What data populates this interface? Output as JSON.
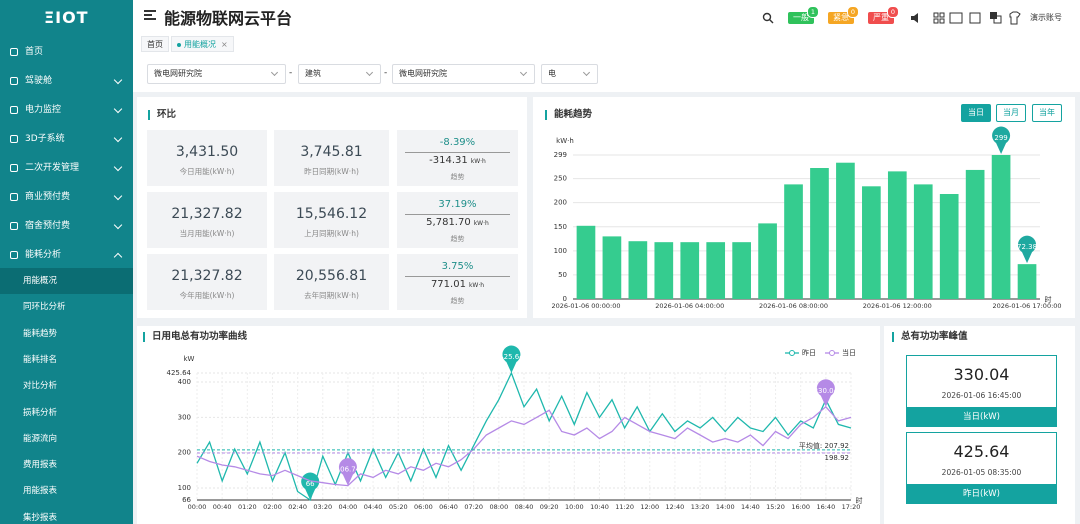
{
  "sidebar": {
    "logo": "ΞIOT",
    "items": [
      {
        "label": "首页",
        "submenu": false
      },
      {
        "label": "驾驶舱",
        "submenu": true
      },
      {
        "label": "电力监控",
        "submenu": true
      },
      {
        "label": "3D子系统",
        "submenu": true
      },
      {
        "label": "二次开发管理",
        "submenu": true
      },
      {
        "label": "商业预付费",
        "submenu": true
      },
      {
        "label": "宿舍预付费",
        "submenu": true
      },
      {
        "label": "能耗分析",
        "submenu": true
      }
    ],
    "subitems": [
      "用能概况",
      "同环比分析",
      "能耗趋势",
      "能耗排名",
      "对比分析",
      "损耗分析",
      "能源流向",
      "费用报表",
      "用能报表",
      "集抄报表"
    ]
  },
  "header": {
    "title": "能源物联网云平台",
    "badges": [
      {
        "label": "一般",
        "count": 1,
        "color": "#2fc25b"
      },
      {
        "label": "紧急",
        "count": 0,
        "color": "#f5a623"
      },
      {
        "label": "严重",
        "count": 0,
        "color": "#f04d4d"
      }
    ],
    "account": "演示账号"
  },
  "tabs": [
    "首页",
    "用能概况"
  ],
  "filters": {
    "selects": [
      "微电网研究院",
      "建筑",
      "微电网研究院",
      "电"
    ],
    "separator": "-"
  },
  "ring": {
    "title": "环比",
    "rows": [
      [
        {
          "value": "3,431.50",
          "label": "今日用能(kW·h)"
        },
        {
          "value": "3,745.81",
          "label": "昨日同期(kW·h)"
        },
        {
          "percent": "-8.39%",
          "diff": "-314.31",
          "unit": "kW·h",
          "label": "趋势"
        }
      ],
      [
        {
          "value": "21,327.82",
          "label": "当月用能(kW·h)"
        },
        {
          "value": "15,546.12",
          "label": "上月同期(kW·h)"
        },
        {
          "percent": "37.19%",
          "diff": "5,781.70",
          "unit": "kW·h",
          "label": "趋势"
        }
      ],
      [
        {
          "value": "21,327.82",
          "label": "今年用能(kW·h)"
        },
        {
          "value": "20,556.81",
          "label": "去年同期(kW·h)"
        },
        {
          "percent": "3.75%",
          "diff": "771.01",
          "unit": "kW·h",
          "label": "趋势"
        }
      ]
    ]
  },
  "chart_data": [
    {
      "type": "bar",
      "title": "能耗趋势",
      "range_buttons": [
        "当日",
        "当月",
        "当年"
      ],
      "ylabel": "kW·h",
      "xlabel": "时",
      "categories": [
        "2026-01-06 00:00:00",
        null,
        null,
        null,
        "2026-01-06 04:00:00",
        null,
        null,
        null,
        "2026-01-06 08:00:00",
        null,
        null,
        null,
        "2026-01-06 12:00:00",
        null,
        null,
        null,
        null,
        "2026-01-06 17:00:00"
      ],
      "values": [
        152,
        130,
        120,
        118,
        118,
        118,
        118,
        157,
        238,
        272,
        283,
        234,
        265,
        238,
        218,
        268,
        299,
        72.38
      ],
      "color": "#35cc8f",
      "pin_color": "#1fa9a0",
      "ylim": [
        0,
        299
      ],
      "yticks": [
        0,
        50,
        100,
        150,
        200,
        250,
        299
      ],
      "grid": true
    },
    {
      "type": "line",
      "title": "日用电总有功功率曲线",
      "ylabel": "kW",
      "xlabel": "时",
      "categories": [
        "00:00",
        null,
        "00:40",
        null,
        "01:20",
        null,
        "02:00",
        null,
        "02:40",
        null,
        "03:20",
        null,
        "04:00",
        null,
        "04:40",
        null,
        "05:20",
        null,
        "06:00",
        null,
        "06:40",
        null,
        "07:20",
        null,
        "08:00",
        null,
        "08:40",
        null,
        "09:20",
        null,
        "10:00",
        null,
        "10:40",
        null,
        "11:20",
        null,
        "12:00",
        null,
        "12:40",
        null,
        "13:20",
        null,
        "14:00",
        null,
        "14:40",
        null,
        "15:20",
        null,
        "16:00",
        null,
        "16:40",
        null,
        "17:20"
      ],
      "series": [
        {
          "name": "昨日",
          "color": "#1fb8ad",
          "values": [
            170,
            230,
            120,
            210,
            140,
            230,
            120,
            200,
            90,
            66,
            190,
            110,
            200,
            120,
            210,
            130,
            200,
            120,
            210,
            130,
            220,
            150,
            220,
            290,
            350,
            425.64,
            330,
            380,
            290,
            360,
            280,
            370,
            300,
            350,
            270,
            330,
            260,
            310,
            260,
            290,
            270,
            300,
            260,
            300,
            270,
            260,
            300,
            250,
            290,
            270,
            350,
            280,
            270
          ]
        },
        {
          "name": "当日",
          "color": "#b58ae6",
          "values": [
            190,
            175,
            165,
            160,
            150,
            140,
            135,
            150,
            135,
            120,
            115,
            110,
            106.74,
            140,
            130,
            150,
            140,
            160,
            150,
            170,
            160,
            180,
            210,
            250,
            270,
            290,
            280,
            300,
            320,
            260,
            250,
            270,
            240,
            260,
            300,
            280,
            260,
            250,
            240,
            270,
            250,
            230,
            240,
            230,
            250,
            220,
            260,
            240,
            280,
            300,
            330.04,
            290,
            300
          ]
        }
      ],
      "average_lines": [
        {
          "value": 207.92,
          "label": "平均值: 207.92"
        },
        198.92
      ],
      "ylim": [
        66,
        425.64
      ],
      "yticks": [
        66,
        100,
        200,
        300,
        400,
        425.64
      ],
      "grid": true
    }
  ],
  "peaks": {
    "title": "总有功功率峰值",
    "cards": [
      {
        "value": "330.04",
        "time": "2026-01-06 16:45:00",
        "label": "当日(kW)"
      },
      {
        "value": "425.64",
        "time": "2026-01-05 08:35:00",
        "label": "昨日(kW)"
      }
    ]
  }
}
